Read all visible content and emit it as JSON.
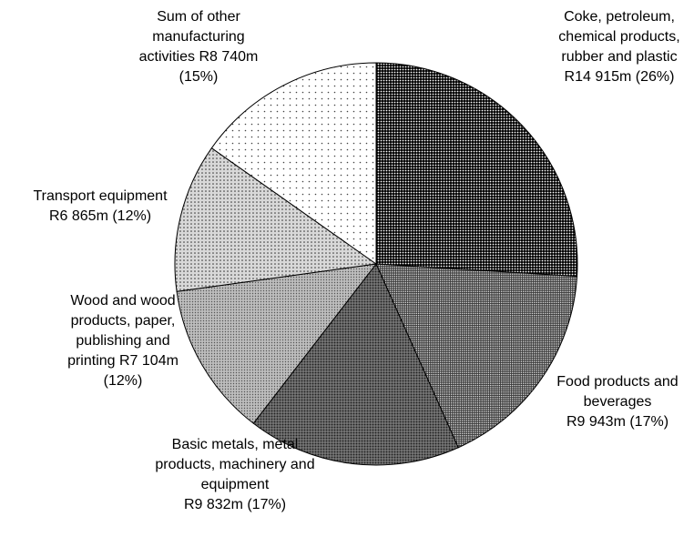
{
  "chart_data": {
    "type": "pie",
    "categories": [
      "Coke, petroleum, chemical products, rubber and plastic",
      "Food products and beverages",
      "Basic metals, metal products, machinery and equipment",
      "Wood and wood products, paper, publishing and printing",
      "Transport equipment",
      "Sum of other manufacturing activities"
    ],
    "values": [
      14915,
      9943,
      9832,
      7104,
      6865,
      8740
    ],
    "value_labels": [
      "R14 915m (26%)",
      "R9 943m (17%)",
      "R9 832m (17%)",
      "R7 104m (12%)",
      "R6 865m (12%)",
      "R8 740m (15%)"
    ],
    "colors": [
      "#000000",
      "#3a3a3a",
      "#7a7a7a",
      "#bdbdbd",
      "#d8d8d8",
      "#ffffff"
    ]
  }
}
